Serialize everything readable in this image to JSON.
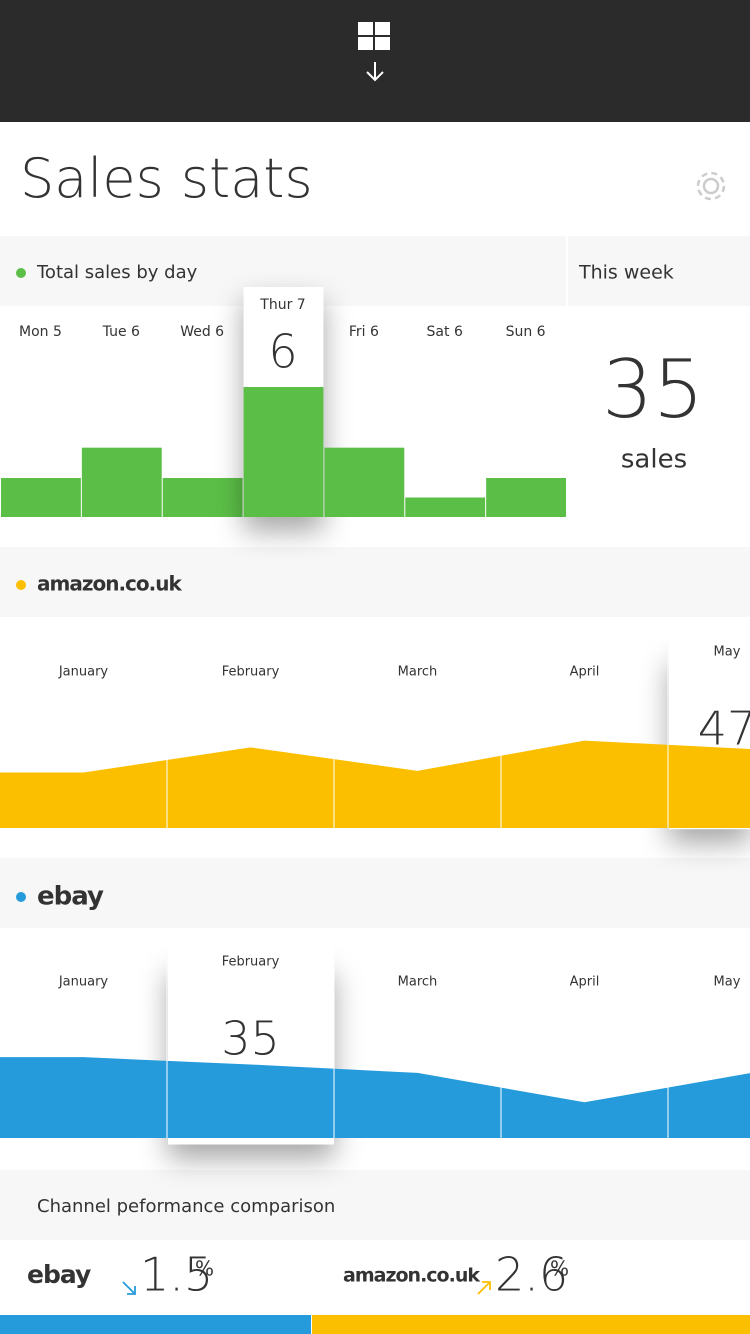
{
  "header": {
    "title": "Sales stats"
  },
  "chart_data": [
    {
      "type": "bar",
      "title": "Total sales by day",
      "color": "#5bbf47",
      "categories": [
        "Mon 5",
        "Tue 6",
        "Wed 6",
        "Thur 7",
        "Fri 6",
        "Sat 6",
        "Sun 6"
      ],
      "values": [
        1.8,
        3.2,
        1.8,
        6,
        3.2,
        0.9,
        1.8
      ],
      "ylim": [
        0,
        6
      ],
      "highlight": 3
    },
    {
      "type": "area",
      "title": "amazon.co.uk",
      "color": "#fcbf00",
      "categories": [
        "January",
        "February",
        "March",
        "April",
        "May"
      ],
      "values": [
        33,
        48,
        34,
        52,
        47
      ],
      "ylim": [
        0,
        100
      ],
      "highlight": 4
    },
    {
      "type": "area",
      "title": "ebay",
      "color": "#259bdb",
      "categories": [
        "January",
        "February",
        "March",
        "April",
        "May"
      ],
      "values": [
        38.5,
        35,
        31,
        17,
        31
      ],
      "ylim": [
        0,
        80
      ],
      "highlight": 1
    }
  ],
  "this_week": {
    "label": "This week",
    "value": 35,
    "unit": "sales"
  },
  "comparison": {
    "title": "Channel peformance comparison",
    "channels": [
      {
        "name": "ebay",
        "value": 1.5,
        "unit": "%",
        "color": "#259bdb"
      },
      {
        "name": "amazon.co.uk",
        "value": 2.6,
        "unit": "%",
        "color": "#fcbf00"
      }
    ]
  }
}
